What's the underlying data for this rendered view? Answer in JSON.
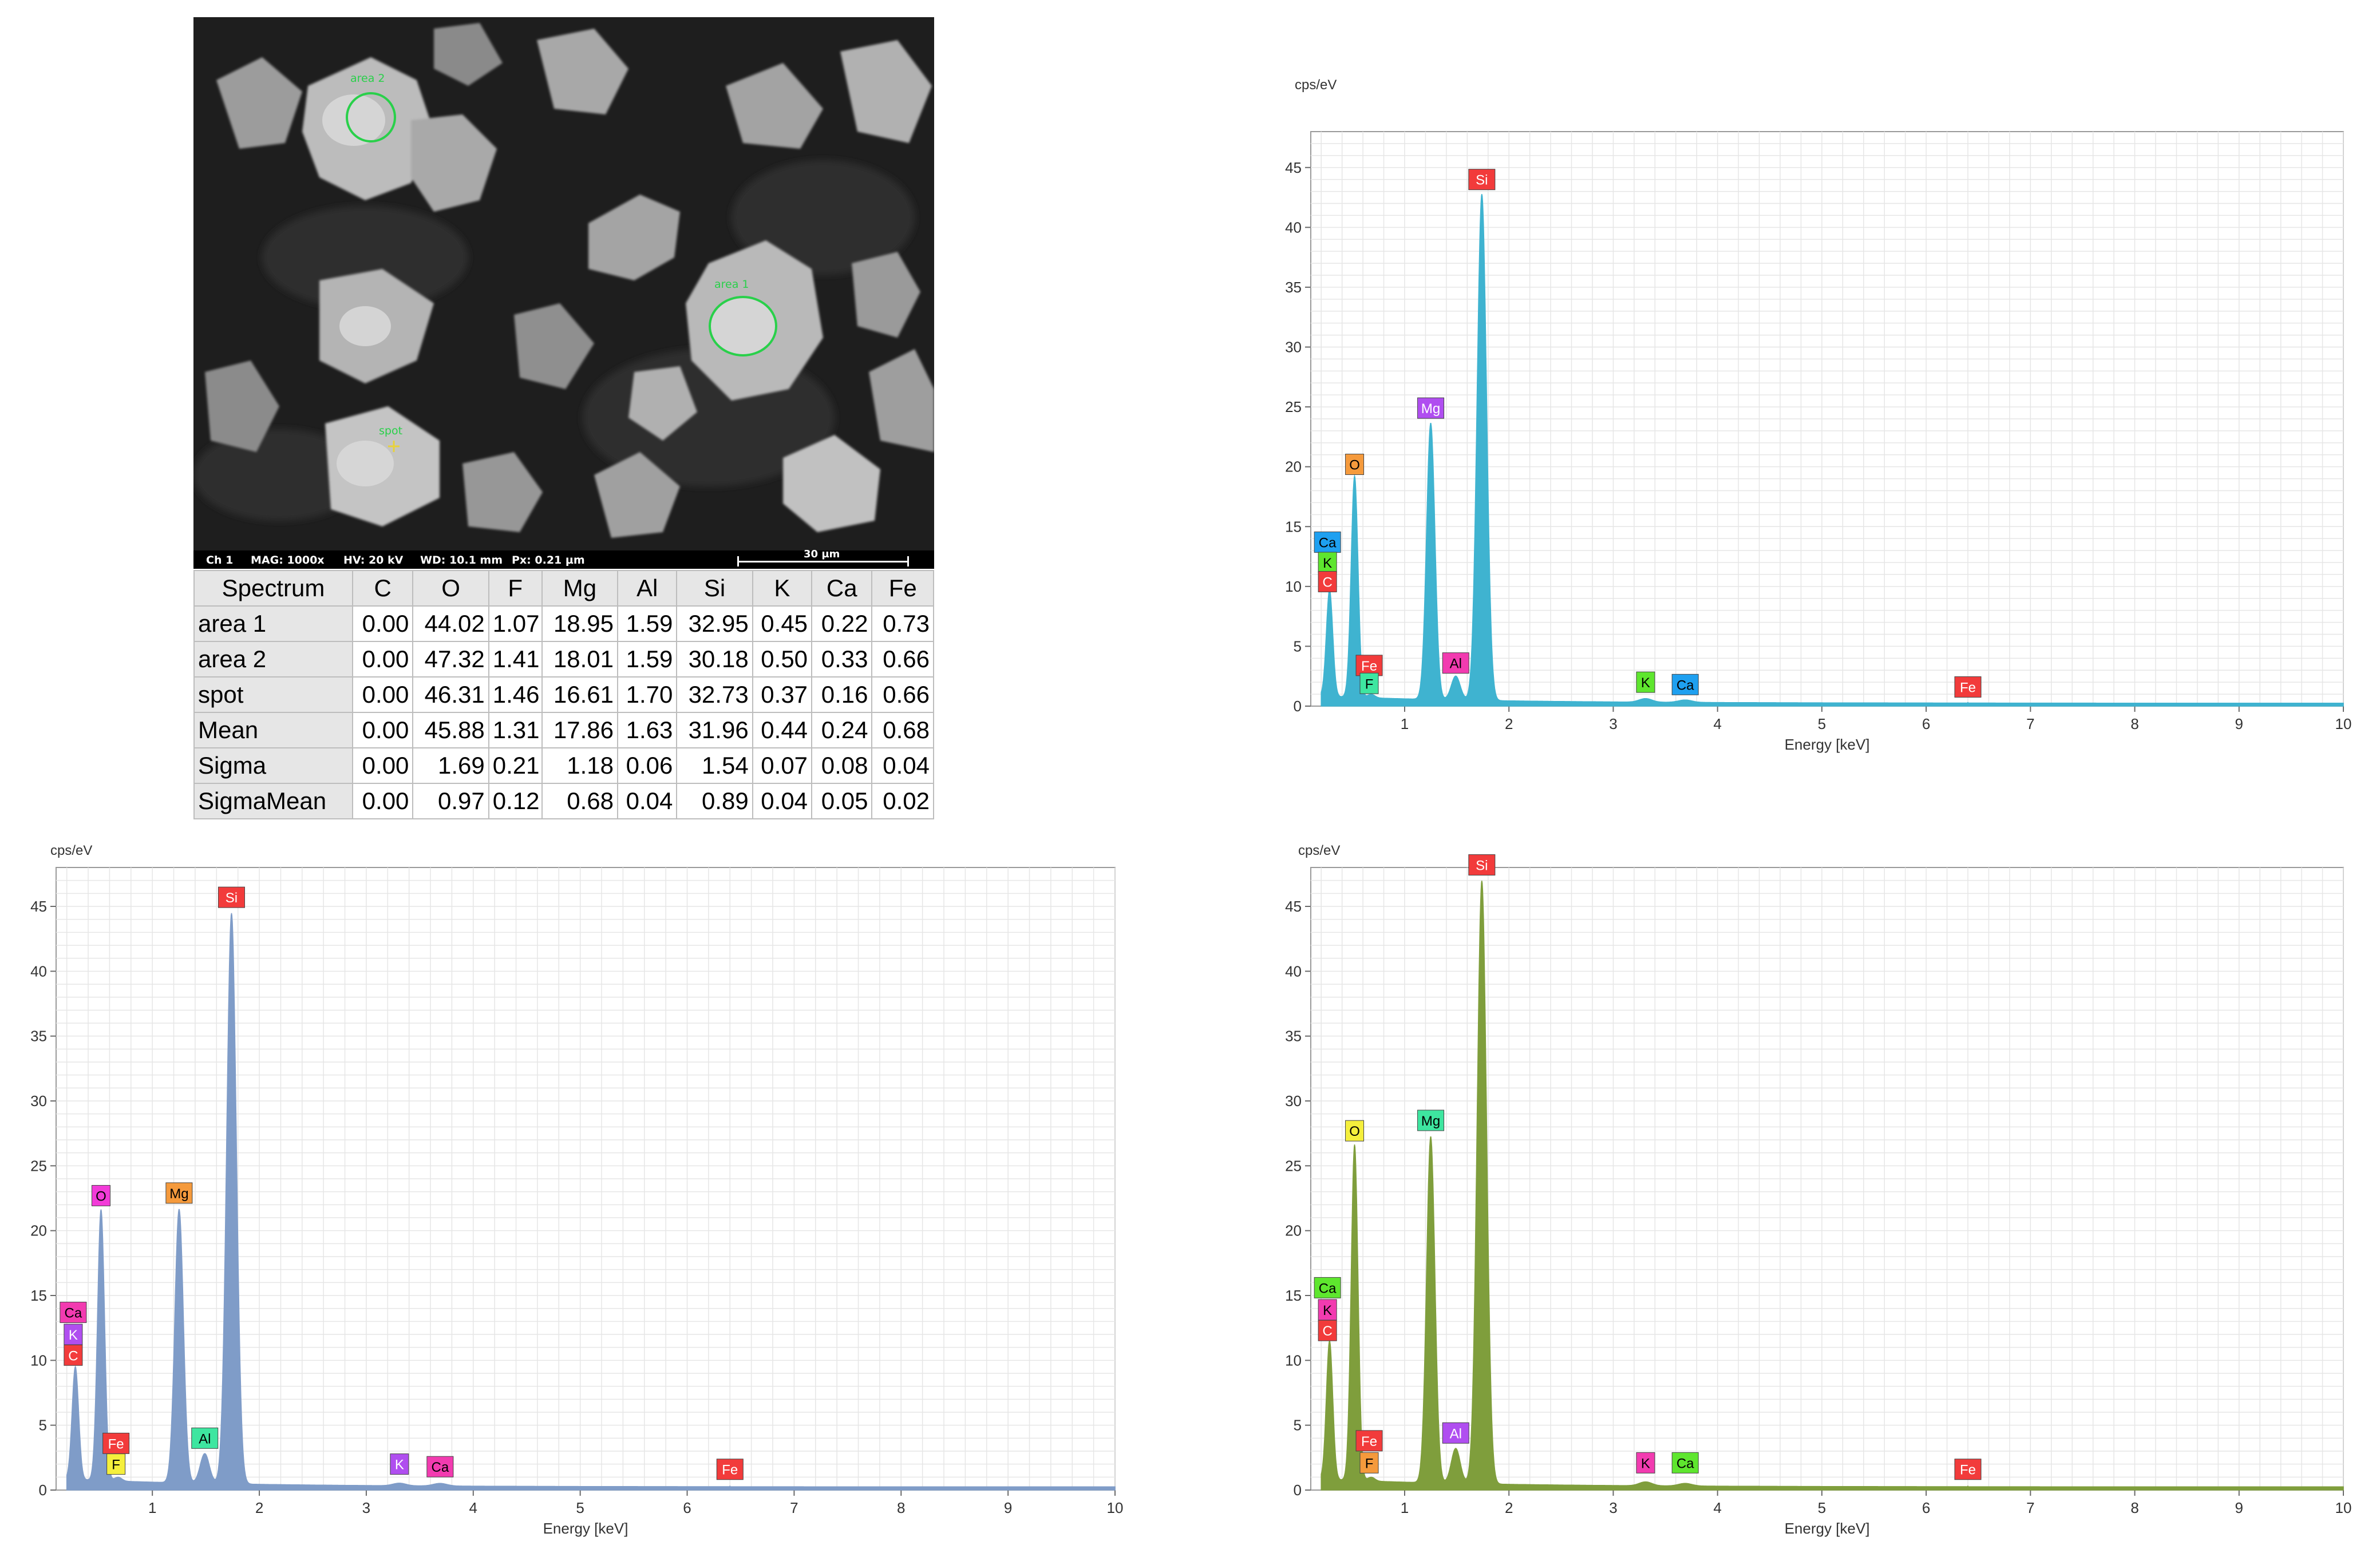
{
  "sem": {
    "labels": {
      "area2": "area 2",
      "area1": "area 1",
      "spot": "spot"
    },
    "info_bar": {
      "channel": "Ch 1",
      "mag": "MAG: 1000x",
      "hv": "HV: 20 kV",
      "wd": "WD: 10.1 mm",
      "px": "Px: 0.21 µm",
      "scale": "30 µm"
    },
    "colors": {
      "marker": "#29d04a",
      "spot_cross": "#e8d23a"
    }
  },
  "table": {
    "headers": [
      "Spectrum",
      "C",
      "O",
      "F",
      "Mg",
      "Al",
      "Si",
      "K",
      "Ca",
      "Fe"
    ],
    "rows": [
      [
        "area 1",
        "0.00",
        "44.02",
        "1.07",
        "18.95",
        "1.59",
        "32.95",
        "0.45",
        "0.22",
        "0.73"
      ],
      [
        "area 2",
        "0.00",
        "47.32",
        "1.41",
        "18.01",
        "1.59",
        "30.18",
        "0.50",
        "0.33",
        "0.66"
      ],
      [
        "spot",
        "0.00",
        "46.31",
        "1.46",
        "16.61",
        "1.70",
        "32.73",
        "0.37",
        "0.16",
        "0.66"
      ],
      [
        "Mean",
        "0.00",
        "45.88",
        "1.31",
        "17.86",
        "1.63",
        "31.96",
        "0.44",
        "0.24",
        "0.68"
      ],
      [
        "Sigma",
        "0.00",
        "1.69",
        "0.21",
        "1.18",
        "0.06",
        "1.54",
        "0.07",
        "0.08",
        "0.04"
      ],
      [
        "SigmaMean",
        "0.00",
        "0.97",
        "0.12",
        "0.68",
        "0.04",
        "0.89",
        "0.04",
        "0.05",
        "0.02"
      ]
    ]
  },
  "chart_data": [
    {
      "type": "area",
      "ylabel": "cps/eV",
      "xlabel": "Energy [keV]",
      "xlim": [
        0.1,
        10
      ],
      "ylim": [
        0,
        48
      ],
      "x_ticks": [
        1,
        2,
        3,
        4,
        5,
        6,
        7,
        8,
        9,
        10
      ],
      "y_ticks": [
        0,
        5,
        10,
        15,
        20,
        25,
        30,
        35,
        40,
        45
      ],
      "grid": true,
      "color": "#3fb3d0",
      "peaks": [
        {
          "element": "C",
          "x": 0.28,
          "y": 9.2
        },
        {
          "element": "O",
          "x": 0.52,
          "y": 18.8
        },
        {
          "element": "F",
          "x": 0.68,
          "y": 0.6
        },
        {
          "element": "Mg",
          "x": 1.25,
          "y": 23.4
        },
        {
          "element": "Al",
          "x": 1.49,
          "y": 2.3
        },
        {
          "element": "Si",
          "x": 1.74,
          "y": 42.6
        },
        {
          "element": "K",
          "x": 3.31,
          "y": 0.6
        },
        {
          "element": "Ca",
          "x": 3.69,
          "y": 0.5
        },
        {
          "element": "Fe",
          "x": 6.4,
          "y": 0.3
        }
      ],
      "tags": [
        {
          "text": "Si",
          "x": 1.74,
          "y": 44.0,
          "bg": "#f23b3b",
          "fg": "#ffffff"
        },
        {
          "text": "Mg",
          "x": 1.25,
          "y": 24.9,
          "bg": "#b04ef0",
          "fg": "#ffffff"
        },
        {
          "text": "O",
          "x": 0.52,
          "y": 20.2,
          "bg": "#f59a3c",
          "fg": "#000000"
        },
        {
          "text": "Ca",
          "x": 0.26,
          "y": 13.7,
          "bg": "#1ea0f0",
          "fg": "#000000"
        },
        {
          "text": "K",
          "x": 0.26,
          "y": 12.0,
          "bg": "#5ee62e",
          "fg": "#000000"
        },
        {
          "text": "C",
          "x": 0.26,
          "y": 10.4,
          "bg": "#f23b3b",
          "fg": "#ffffff"
        },
        {
          "text": "Fe",
          "x": 0.66,
          "y": 3.4,
          "bg": "#f23b3b",
          "fg": "#ffffff"
        },
        {
          "text": "F",
          "x": 0.66,
          "y": 1.9,
          "bg": "#3ee6a0",
          "fg": "#000000"
        },
        {
          "text": "Al",
          "x": 1.49,
          "y": 3.6,
          "bg": "#f23bb0",
          "fg": "#000000"
        },
        {
          "text": "K",
          "x": 3.31,
          "y": 2.0,
          "bg": "#5ee62e",
          "fg": "#000000"
        },
        {
          "text": "Ca",
          "x": 3.69,
          "y": 1.8,
          "bg": "#1ea0f0",
          "fg": "#000000"
        },
        {
          "text": "Fe",
          "x": 6.4,
          "y": 1.6,
          "bg": "#f23b3b",
          "fg": "#ffffff"
        }
      ]
    },
    {
      "type": "area",
      "ylabel": "cps/eV",
      "xlabel": "Energy [keV]",
      "xlim": [
        0.1,
        10
      ],
      "ylim": [
        0,
        48
      ],
      "x_ticks": [
        1,
        2,
        3,
        4,
        5,
        6,
        7,
        8,
        9,
        10
      ],
      "y_ticks": [
        0,
        5,
        10,
        15,
        20,
        25,
        30,
        35,
        40,
        45
      ],
      "grid": true,
      "color": "#7f9cc8",
      "peaks": [
        {
          "element": "C",
          "x": 0.28,
          "y": 9.0
        },
        {
          "element": "O",
          "x": 0.52,
          "y": 21.2
        },
        {
          "element": "F",
          "x": 0.68,
          "y": 0.6
        },
        {
          "element": "Mg",
          "x": 1.25,
          "y": 21.4
        },
        {
          "element": "Al",
          "x": 1.49,
          "y": 2.6
        },
        {
          "element": "Si",
          "x": 1.74,
          "y": 44.3
        },
        {
          "element": "K",
          "x": 3.31,
          "y": 0.5
        },
        {
          "element": "Ca",
          "x": 3.69,
          "y": 0.5
        },
        {
          "element": "Fe",
          "x": 6.4,
          "y": 0.3
        }
      ],
      "tags": [
        {
          "text": "Si",
          "x": 1.74,
          "y": 45.7,
          "bg": "#f23b3b",
          "fg": "#ffffff"
        },
        {
          "text": "Mg",
          "x": 1.25,
          "y": 22.9,
          "bg": "#f59a3c",
          "fg": "#000000"
        },
        {
          "text": "O",
          "x": 0.52,
          "y": 22.7,
          "bg": "#f23bd8",
          "fg": "#000000"
        },
        {
          "text": "Ca",
          "x": 0.26,
          "y": 13.7,
          "bg": "#f23bb0",
          "fg": "#000000"
        },
        {
          "text": "K",
          "x": 0.26,
          "y": 12.0,
          "bg": "#b04ef0",
          "fg": "#ffffff"
        },
        {
          "text": "C",
          "x": 0.26,
          "y": 10.4,
          "bg": "#f23b3b",
          "fg": "#ffffff"
        },
        {
          "text": "Fe",
          "x": 0.66,
          "y": 3.6,
          "bg": "#f23b3b",
          "fg": "#ffffff"
        },
        {
          "text": "F",
          "x": 0.66,
          "y": 2.0,
          "bg": "#f5ef3c",
          "fg": "#000000"
        },
        {
          "text": "Al",
          "x": 1.49,
          "y": 4.0,
          "bg": "#3ee6a0",
          "fg": "#000000"
        },
        {
          "text": "K",
          "x": 3.31,
          "y": 2.0,
          "bg": "#b04ef0",
          "fg": "#ffffff"
        },
        {
          "text": "Ca",
          "x": 3.69,
          "y": 1.8,
          "bg": "#f23bb0",
          "fg": "#000000"
        },
        {
          "text": "Fe",
          "x": 6.4,
          "y": 1.6,
          "bg": "#f23b3b",
          "fg": "#ffffff"
        }
      ]
    },
    {
      "type": "area",
      "ylabel": "cps/eV",
      "xlabel": "Energy [keV]",
      "xlim": [
        0.1,
        10
      ],
      "ylim": [
        0,
        48
      ],
      "x_ticks": [
        1,
        2,
        3,
        4,
        5,
        6,
        7,
        8,
        9,
        10
      ],
      "y_ticks": [
        0,
        5,
        10,
        15,
        20,
        25,
        30,
        35,
        40,
        45
      ],
      "grid": true,
      "color": "#7f9e3c",
      "peaks": [
        {
          "element": "C",
          "x": 0.28,
          "y": 11.0
        },
        {
          "element": "O",
          "x": 0.52,
          "y": 26.2
        },
        {
          "element": "F",
          "x": 0.68,
          "y": 0.6
        },
        {
          "element": "Mg",
          "x": 1.25,
          "y": 27.0
        },
        {
          "element": "Al",
          "x": 1.49,
          "y": 3.0
        },
        {
          "element": "Si",
          "x": 1.74,
          "y": 46.8
        },
        {
          "element": "K",
          "x": 3.31,
          "y": 0.6
        },
        {
          "element": "Ca",
          "x": 3.69,
          "y": 0.5
        },
        {
          "element": "Fe",
          "x": 6.4,
          "y": 0.3
        }
      ],
      "tags": [
        {
          "text": "Si",
          "x": 1.74,
          "y": 48.2,
          "bg": "#f23b3b",
          "fg": "#ffffff"
        },
        {
          "text": "Mg",
          "x": 1.25,
          "y": 28.5,
          "bg": "#3ee6a0",
          "fg": "#000000"
        },
        {
          "text": "O",
          "x": 0.52,
          "y": 27.7,
          "bg": "#f5ef3c",
          "fg": "#000000"
        },
        {
          "text": "Ca",
          "x": 0.26,
          "y": 15.6,
          "bg": "#5ee62e",
          "fg": "#000000"
        },
        {
          "text": "K",
          "x": 0.26,
          "y": 13.9,
          "bg": "#f23bb0",
          "fg": "#000000"
        },
        {
          "text": "C",
          "x": 0.26,
          "y": 12.3,
          "bg": "#f23b3b",
          "fg": "#ffffff"
        },
        {
          "text": "Fe",
          "x": 0.66,
          "y": 3.8,
          "bg": "#f23b3b",
          "fg": "#ffffff"
        },
        {
          "text": "F",
          "x": 0.66,
          "y": 2.1,
          "bg": "#f59a3c",
          "fg": "#000000"
        },
        {
          "text": "Al",
          "x": 1.49,
          "y": 4.4,
          "bg": "#b04ef0",
          "fg": "#ffffff"
        },
        {
          "text": "K",
          "x": 3.31,
          "y": 2.1,
          "bg": "#f23bb0",
          "fg": "#000000"
        },
        {
          "text": "Ca",
          "x": 3.69,
          "y": 2.1,
          "bg": "#5ee62e",
          "fg": "#000000"
        },
        {
          "text": "Fe",
          "x": 6.4,
          "y": 1.6,
          "bg": "#f23b3b",
          "fg": "#ffffff"
        }
      ]
    }
  ]
}
